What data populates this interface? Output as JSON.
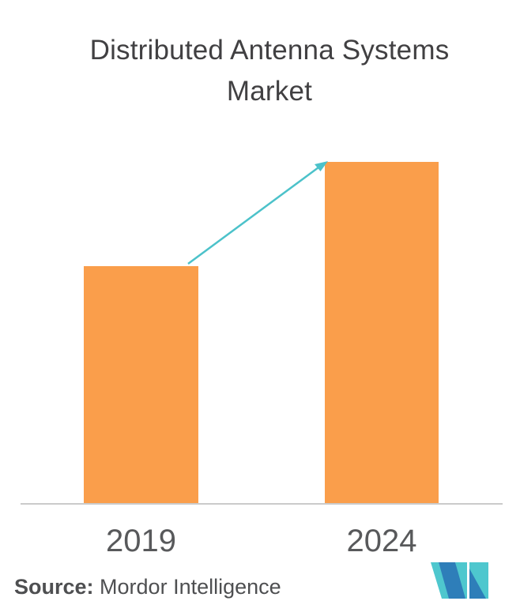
{
  "title": {
    "line1": "Distributed Antenna Systems",
    "line2": "Market"
  },
  "chart_data": {
    "type": "bar",
    "title": "Distributed Antenna Systems Market",
    "categories": [
      "2019",
      "2024"
    ],
    "values": [
      69.5,
      100
    ],
    "values_note": "no value axis shown; values are bar heights as percent of the 2024 bar",
    "xlabel": "",
    "ylabel": "",
    "grid": false,
    "legend": false,
    "annotations": [
      "growth arrow from top of 2019 bar to top of 2024 bar"
    ]
  },
  "source": {
    "label": "Source:",
    "text": "Mordor Intelligence"
  },
  "icons": {
    "logo": "mordor-intelligence-logo"
  },
  "colors": {
    "bar": "#FA9E4B",
    "arrow": "#4CC2CA",
    "logo_teal": "#4EC7CE",
    "logo_blue": "#2E7EB9",
    "title_text": "#414042",
    "tick_text": "#58595B",
    "source_text": "#4E4F51",
    "axis_line": "#CBCBCB",
    "background": "#FFFFFF"
  }
}
